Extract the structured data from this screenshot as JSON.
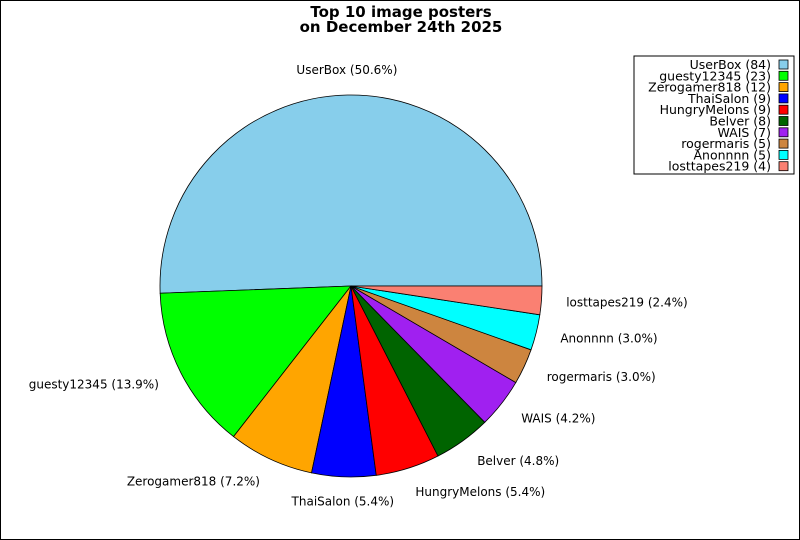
{
  "chart_data": {
    "type": "pie",
    "title": [
      "Top 10 image posters",
      "on December 24th 2025"
    ],
    "legend_placement": "top-right",
    "start_angle_deg": 0,
    "direction": "counterclockwise",
    "slices": [
      {
        "name": "UserBox",
        "value": 84,
        "percent": "50.6%",
        "color": "#87CEEB"
      },
      {
        "name": "guesty12345",
        "value": 23,
        "percent": "13.9%",
        "color": "#00FF00"
      },
      {
        "name": "Zerogamer818",
        "value": 12,
        "percent": "7.2%",
        "color": "#FFA500"
      },
      {
        "name": "ThaiSalon",
        "value": 9,
        "percent": "5.4%",
        "color": "#0000FF"
      },
      {
        "name": "HungryMelons",
        "value": 9,
        "percent": "5.4%",
        "color": "#FF0000"
      },
      {
        "name": "Belver",
        "value": 8,
        "percent": "4.8%",
        "color": "#006400"
      },
      {
        "name": "WAIS",
        "value": 7,
        "percent": "4.2%",
        "color": "#A020F0"
      },
      {
        "name": "rogermaris",
        "value": 5,
        "percent": "3.0%",
        "color": "#CD853F"
      },
      {
        "name": "Anonnnn",
        "value": 5,
        "percent": "3.0%",
        "color": "#00FFFF"
      },
      {
        "name": "losttapes219",
        "value": 4,
        "percent": "2.4%",
        "color": "#FA8072"
      }
    ]
  }
}
